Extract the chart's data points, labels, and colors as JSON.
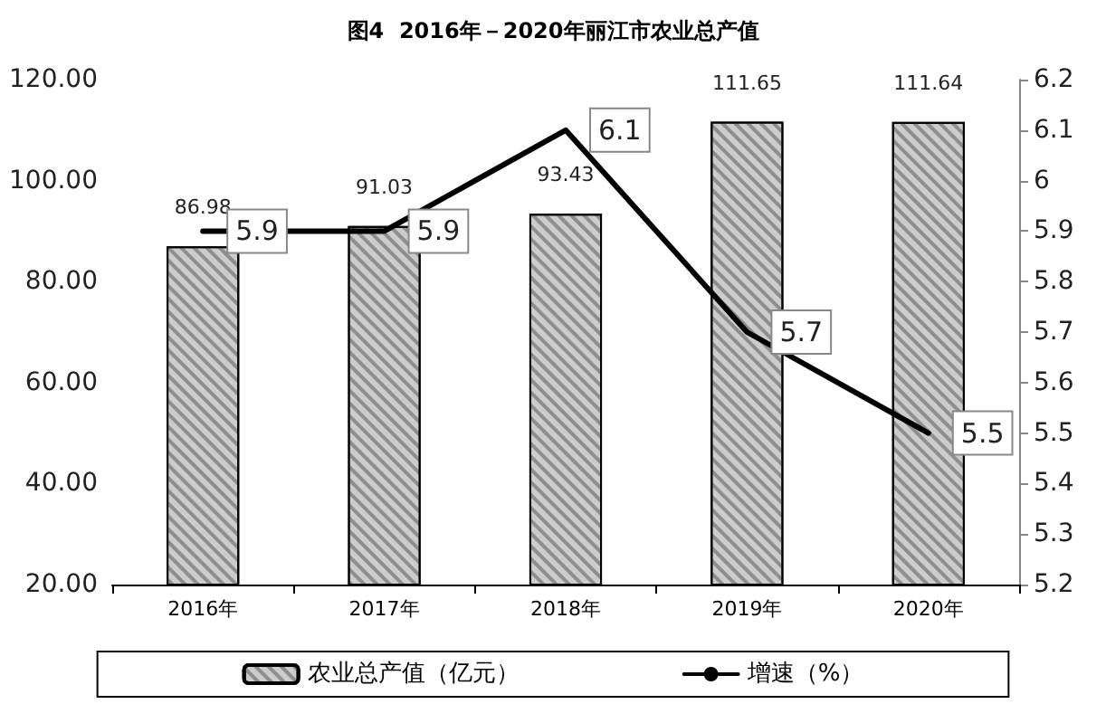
{
  "chart_data": {
    "type": "bar",
    "title": "图4  2016年－2020年丽江市农业总产值",
    "categories": [
      "2016年",
      "2017年",
      "2018年",
      "2019年",
      "2020年"
    ],
    "series": [
      {
        "name": "农业总产值（亿元）",
        "color": "#cccccc",
        "values": [
          86.98,
          91.03,
          93.43,
          111.65,
          111.64
        ]
      },
      {
        "name": "增速（%）",
        "type": "line",
        "axis": "y2",
        "color": "#000000",
        "values": [
          5.9,
          5.9,
          6.1,
          5.7,
          5.5
        ]
      }
    ],
    "ylim": [
      20,
      120
    ],
    "yticks": [
      {
        "value": 20,
        "label": "20.00"
      },
      {
        "value": 40,
        "label": "40.00"
      },
      {
        "value": 60,
        "label": "60.00"
      },
      {
        "value": 80,
        "label": "80.00"
      },
      {
        "value": 100,
        "label": "100.00"
      },
      {
        "value": 120,
        "label": "120.00"
      }
    ],
    "y2lim": [
      5.2,
      6.2
    ],
    "y2ticks": [
      5.2,
      5.3,
      5.4,
      5.5,
      5.6,
      5.7,
      5.8,
      5.9,
      6,
      6.1,
      6.2
    ],
    "data_labels": true,
    "grid": false,
    "legend": "bottom",
    "marker": "none",
    "line_style": "solid"
  }
}
